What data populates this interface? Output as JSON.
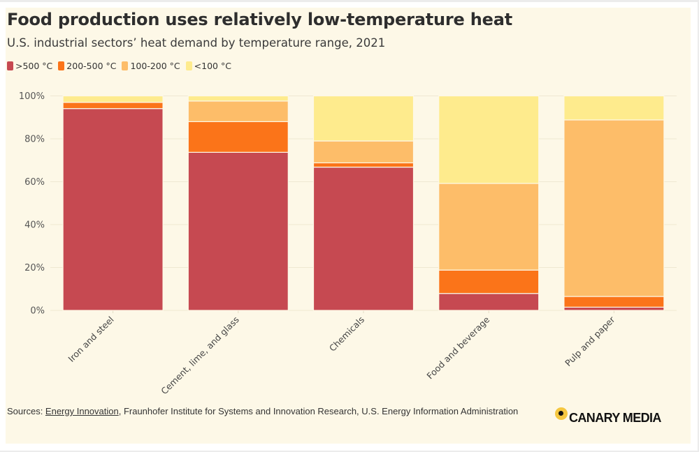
{
  "header": {
    "title": "Food production uses relatively low-temperature heat",
    "subtitle": "U.S. industrial sectors’ heat demand by temperature range, 2021"
  },
  "legend": [
    {
      "label": ">500 °C",
      "color": "#c64951"
    },
    {
      "label": "200-500 °C",
      "color": "#fb7419"
    },
    {
      "label": "100-200 °C",
      "color": "#fdbd69"
    },
    {
      "label": "<100 °C",
      "color": "#feeb8d"
    }
  ],
  "chart_data": {
    "type": "bar",
    "stacked": true,
    "title": "Food production uses relatively low-temperature heat",
    "subtitle": "U.S. industrial sectors’ heat demand by temperature range, 2021",
    "xlabel": "",
    "ylabel": "",
    "ylim": [
      0,
      100
    ],
    "y_ticks": [
      0,
      20,
      40,
      60,
      80,
      100
    ],
    "y_tick_labels": [
      "0%",
      "20%",
      "40%",
      "60%",
      "80%",
      "100%"
    ],
    "grid": true,
    "legend_position": "top-left",
    "categories": [
      "Iron and steel",
      "Cement, lime, and glass",
      "Chemicals",
      "Food and beverage",
      "Pulp and paper"
    ],
    "series": [
      {
        "name": ">500 °C",
        "color": "#c64951",
        "values": [
          94.1,
          73.7,
          66.8,
          7.9,
          1.5
        ]
      },
      {
        "name": "200-500 °C",
        "color": "#fb7419",
        "values": [
          2.9,
          14.3,
          2.0,
          10.9,
          5.0
        ]
      },
      {
        "name": "100-200 °C",
        "color": "#fdbd69",
        "values": [
          0.0,
          9.6,
          10.2,
          40.4,
          82.3
        ]
      },
      {
        "name": "<100 °C",
        "color": "#feeb8d",
        "values": [
          3.0,
          2.4,
          21.0,
          40.8,
          11.2
        ]
      }
    ]
  },
  "footer": {
    "sources_prefix": "Sources: ",
    "sources_link": "Energy Innovation",
    "sources_rest": ", Fraunhofer Institute for Systems and Innovation Research, U.S. Energy Information Administration",
    "logo_text": "CANARY MEDIA"
  }
}
